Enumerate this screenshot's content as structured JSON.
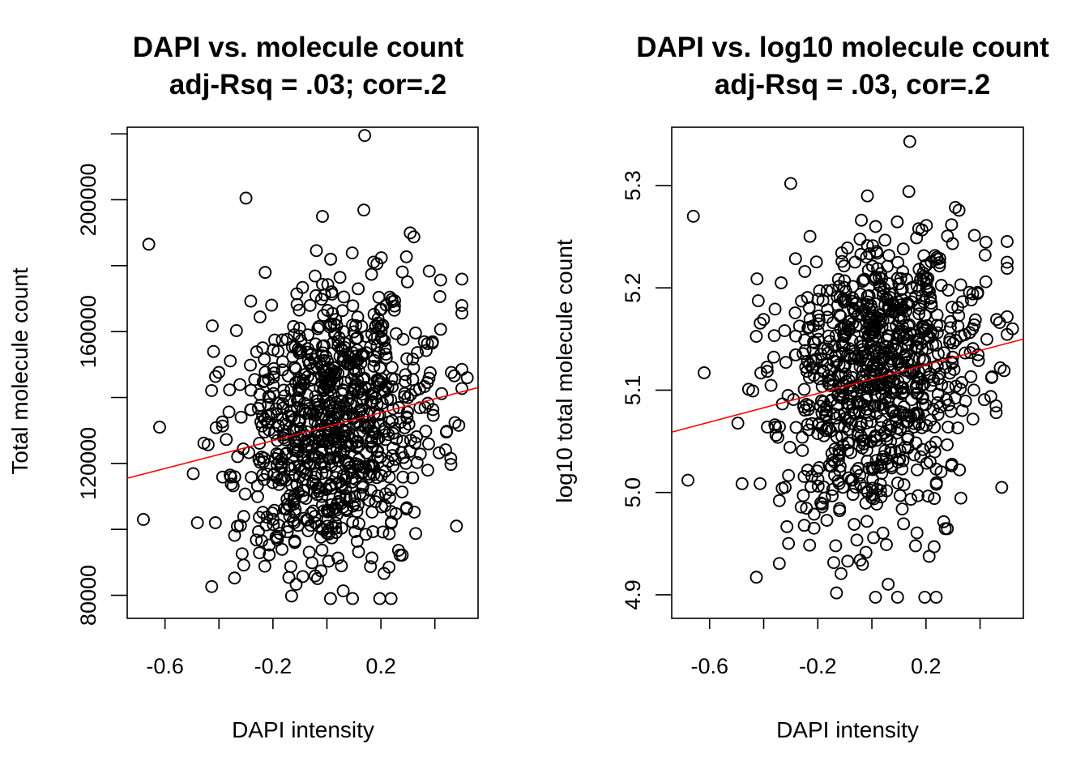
{
  "chart_data": [
    {
      "type": "scatter",
      "title": "DAPI vs. molecule count",
      "subtitle": "adj-Rsq = .03; cor=.2",
      "xlabel": "DAPI intensity",
      "ylabel": "Total molecule count",
      "xlim": [
        -0.74,
        0.56
      ],
      "ylim": [
        73000,
        222000
      ],
      "xticks": [
        -0.6,
        -0.4,
        -0.2,
        0.0,
        0.2,
        0.4
      ],
      "xtick_labels": [
        "-0.6",
        "",
        "-0.2",
        "",
        "0.2",
        ""
      ],
      "yticks": [
        80000,
        100000,
        120000,
        140000,
        160000,
        180000,
        200000,
        220000
      ],
      "ytick_labels": [
        "80000",
        "",
        "120000",
        "",
        "160000",
        "",
        "200000",
        ""
      ],
      "fit_line": {
        "x": [
          -0.74,
          0.56
        ],
        "y": [
          115500,
          143000
        ],
        "color": "#ff0000"
      },
      "n_points": 900,
      "seed": 42,
      "highlight_points": [
        [
          -0.66,
          186500
        ],
        [
          -0.68,
          103000
        ],
        [
          -0.62,
          131000
        ],
        [
          0.14,
          219500
        ],
        [
          -0.3,
          200500
        ],
        [
          0.52,
          146000
        ],
        [
          0.48,
          101000
        ]
      ]
    },
    {
      "type": "scatter",
      "title": "DAPI vs. log10 molecule count",
      "subtitle": "adj-Rsq = .03, cor=.2",
      "xlabel": "DAPI intensity",
      "ylabel": "log10 total molecule count",
      "xlim": [
        -0.74,
        0.56
      ],
      "ylim": [
        4.877,
        5.357
      ],
      "xticks": [
        -0.6,
        -0.4,
        -0.2,
        0.0,
        0.2,
        0.4
      ],
      "xtick_labels": [
        "-0.6",
        "",
        "-0.2",
        "",
        "0.2",
        ""
      ],
      "yticks": [
        4.9,
        5.0,
        5.1,
        5.2,
        5.3
      ],
      "ytick_labels": [
        "4.9",
        "5.0",
        "5.1",
        "5.2",
        "5.3"
      ],
      "fit_line": {
        "x": [
          -0.74,
          0.56
        ],
        "y": [
          5.059,
          5.15
        ],
        "color": "#ff0000"
      },
      "n_points": 900,
      "seed": 42,
      "highlight_points": [
        [
          -0.66,
          5.27
        ],
        [
          -0.68,
          5.012
        ],
        [
          -0.62,
          5.117
        ],
        [
          0.14,
          5.343
        ],
        [
          -0.3,
          5.302
        ],
        [
          0.52,
          5.16
        ],
        [
          0.48,
          5.005
        ]
      ]
    }
  ]
}
